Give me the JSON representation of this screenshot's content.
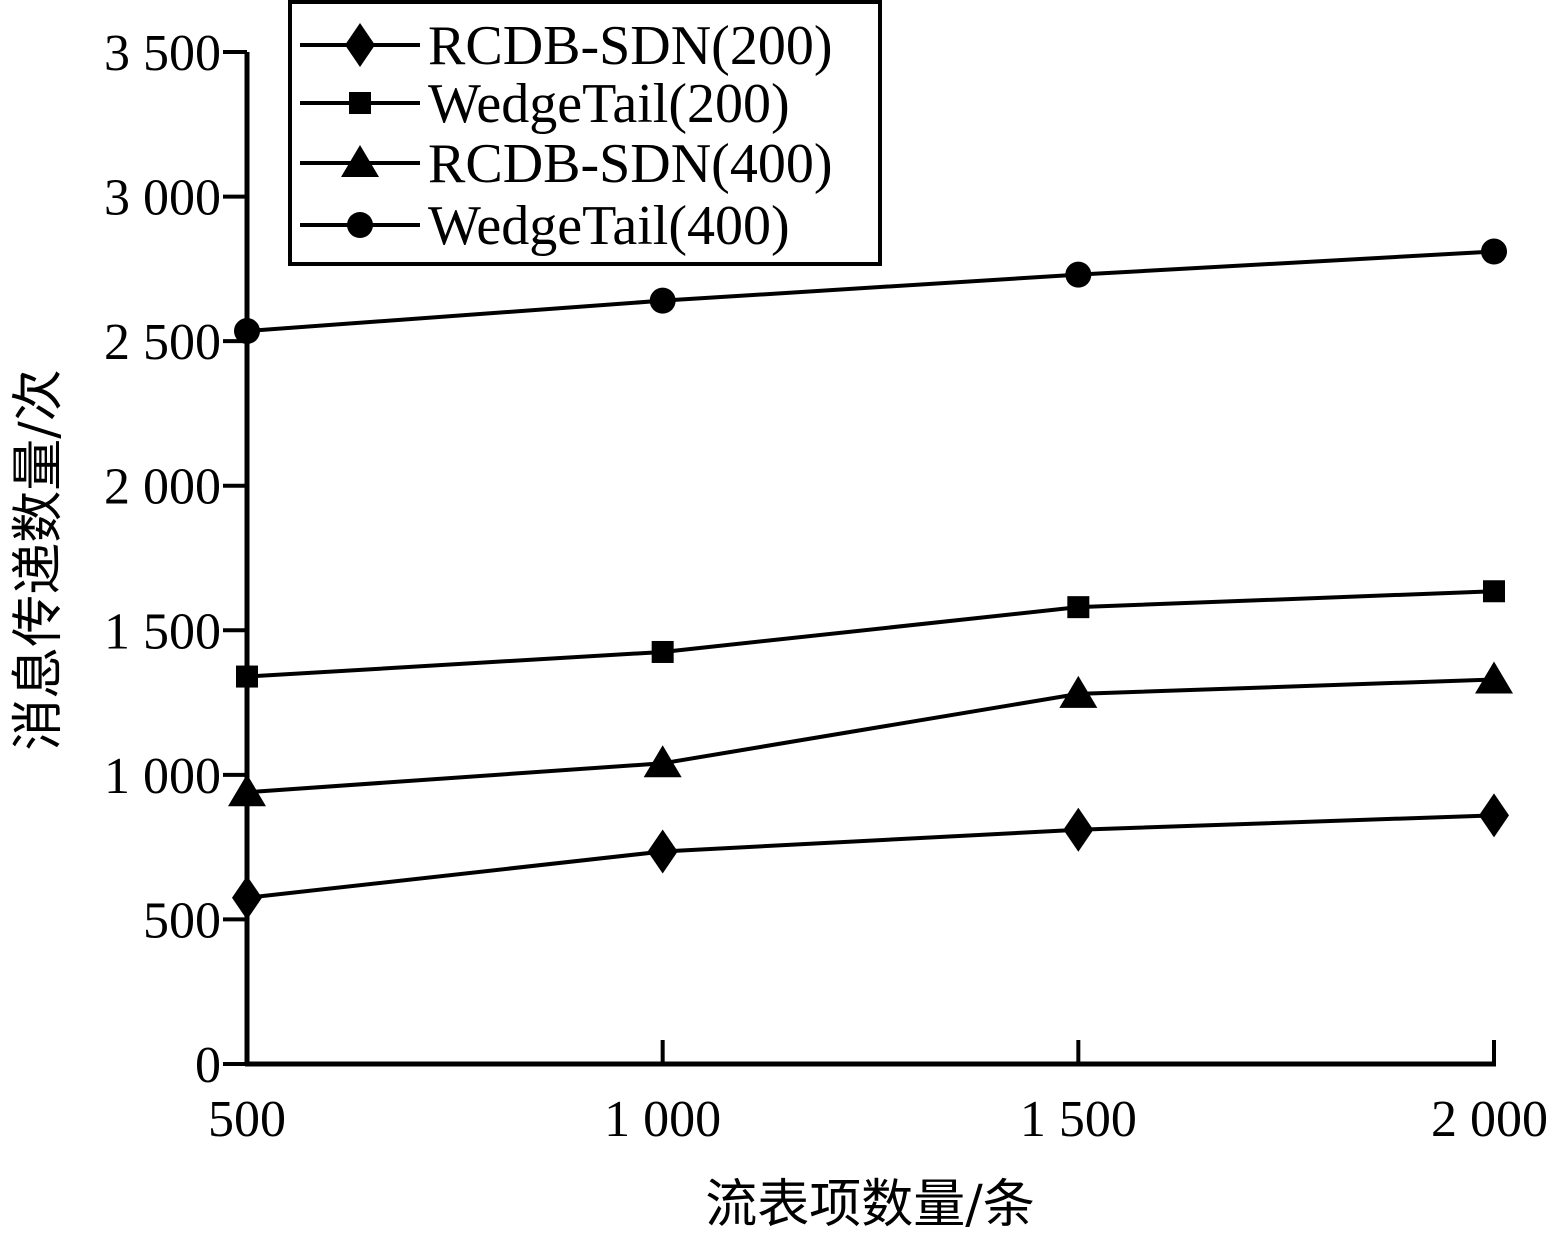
{
  "chart_data": {
    "type": "line",
    "xlabel": "流表项数量/条",
    "ylabel": "消息传递数量/次",
    "x": [
      500,
      1000,
      1500,
      2000
    ],
    "x_tick_labels": [
      "500",
      "1 000",
      "1 500",
      "2 000"
    ],
    "y_ticks": [
      0,
      500,
      1000,
      1500,
      2000,
      2500,
      3000,
      3500
    ],
    "y_tick_labels": [
      "0",
      "500",
      "1 000",
      "1 500",
      "2 000",
      "2 500",
      "3 000",
      "3 500"
    ],
    "xlim": [
      500,
      2000
    ],
    "ylim": [
      0,
      3500
    ],
    "grid": false,
    "legend_position": "top-left",
    "series": [
      {
        "name": "RCDB-SDN(200)",
        "marker": "diamond",
        "values": [
          575,
          735,
          810,
          860
        ]
      },
      {
        "name": "WedgeTail(200)",
        "marker": "square",
        "values": [
          1340,
          1425,
          1580,
          1635
        ]
      },
      {
        "name": "RCDB-SDN(400)",
        "marker": "triangle",
        "values": [
          940,
          1040,
          1280,
          1330
        ]
      },
      {
        "name": "WedgeTail(400)",
        "marker": "circle",
        "values": [
          2535,
          2640,
          2730,
          2810
        ]
      }
    ]
  }
}
